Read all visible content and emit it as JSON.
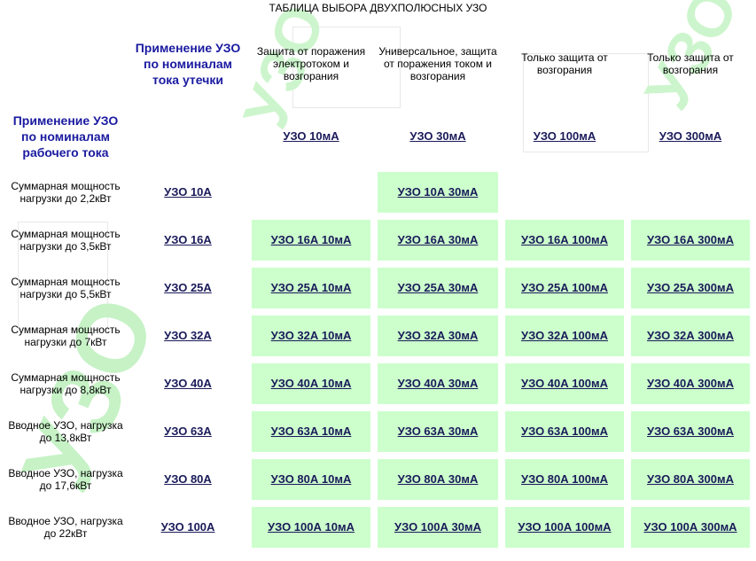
{
  "title": "ТАБЛИЦА ВЫБОРА ДВУХПОЛЮСНЫХ УЗО",
  "header": {
    "leakage_label": "Применение УЗО по номиналам тока утечки",
    "working_label": "Применение УЗО по номиналам рабочего тока",
    "columns": [
      {
        "desc": "Защита от поражения электротоком и возгорания",
        "link": "УЗО 10мА"
      },
      {
        "desc": "Универсальное, защита от поражения током и возгорания",
        "link": "УЗО 30мА"
      },
      {
        "desc": "Только защита от возгорания",
        "link": "УЗО 100мА"
      },
      {
        "desc": "Только защита от возгорания",
        "link": "УЗО 300мА"
      }
    ]
  },
  "rows": [
    {
      "label": "Суммарная мощность нагрузки до 2,2кВт",
      "rated": "УЗО 10А",
      "cells": [
        "",
        "УЗО 10А 30мА",
        "",
        ""
      ]
    },
    {
      "label": "Суммарная мощность нагрузки до 3,5кВт",
      "rated": "УЗО 16А",
      "cells": [
        "УЗО 16А 10мА",
        "УЗО 16А 30мА",
        "УЗО 16А 100мА",
        "УЗО 16А 300мА"
      ]
    },
    {
      "label": "Суммарная мощность нагрузки до 5,5кВт",
      "rated": "УЗО 25А",
      "cells": [
        "УЗО 25А 10мА",
        "УЗО 25А 30мА",
        "УЗО 25А 100мА",
        "УЗО 25А 300мА"
      ]
    },
    {
      "label": "Суммарная мощность нагрузки до 7кВт",
      "rated": "УЗО 32А",
      "cells": [
        "УЗО 32А 10мА",
        "УЗО 32А 30мА",
        "УЗО 32А 100мА",
        "УЗО 32А 300мА"
      ]
    },
    {
      "label": "Суммарная мощность нагрузки до 8,8кВт",
      "rated": "УЗО 40А",
      "cells": [
        "УЗО 40А 10мА",
        "УЗО 40А 30мА",
        "УЗО 40А 100мА",
        "УЗО 40А 300мА"
      ]
    },
    {
      "label": "Вводное УЗО, нагрузка до 13,8кВт",
      "rated": "УЗО 63А",
      "cells": [
        "УЗО 63А 10мА",
        "УЗО 63А 30мА",
        "УЗО 63А 100мА",
        "УЗО 63А 300мА"
      ]
    },
    {
      "label": "Вводное УЗО, нагрузка до 17,6кВт",
      "rated": "УЗО 80А",
      "cells": [
        "УЗО 80А 10мА",
        "УЗО 80А 30мА",
        "УЗО 80А 100мА",
        "УЗО 80А 300мА"
      ]
    },
    {
      "label": "Вводное УЗО, нагрузка до 22кВт",
      "rated": "УЗО 100А",
      "cells": [
        "УЗО 100А 10мА",
        "УЗО 100А 30мА",
        "УЗО 100А 100мА",
        "УЗО 100А 300мА"
      ]
    }
  ],
  "background": {
    "watermark": "УЗО",
    "watermark_color": "#c6f2c6"
  },
  "colors": {
    "cell_bg": "#ccffcc",
    "heading": "#1a1aa0",
    "link": "#1a1a5a"
  }
}
